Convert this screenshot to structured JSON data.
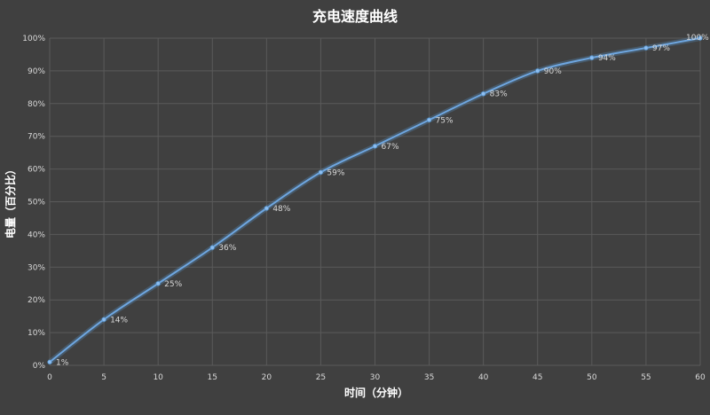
{
  "chart_data": {
    "type": "line",
    "title": "充电速度曲线",
    "xlabel": "时间（分钟）",
    "ylabel": "电量（百分比）",
    "x": [
      0,
      5,
      10,
      15,
      20,
      25,
      30,
      35,
      40,
      45,
      50,
      55,
      60
    ],
    "xlim": [
      0,
      60
    ],
    "ylim": [
      0,
      100
    ],
    "x_ticks": [
      "0",
      "5",
      "10",
      "15",
      "20",
      "25",
      "30",
      "35",
      "40",
      "45",
      "50",
      "55",
      "60"
    ],
    "y_ticks": [
      "0%",
      "10%",
      "20%",
      "30%",
      "40%",
      "50%",
      "60%",
      "70%",
      "80%",
      "90%",
      "100%"
    ],
    "series": [
      {
        "values": [
          1,
          14,
          25,
          36,
          48,
          59,
          67,
          75,
          83,
          90,
          94,
          97,
          100
        ],
        "labels": [
          "1%",
          "14%",
          "25%",
          "36%",
          "48%",
          "59%",
          "67%",
          "75%",
          "83%",
          "90%",
          "94%",
          "97%",
          "100%"
        ]
      }
    ],
    "grid": true,
    "legend": "none",
    "colors": {
      "background": "#404040",
      "series": "#5b9bd5",
      "grid": "#5a5a5a",
      "text": "#d9d9d9"
    }
  }
}
